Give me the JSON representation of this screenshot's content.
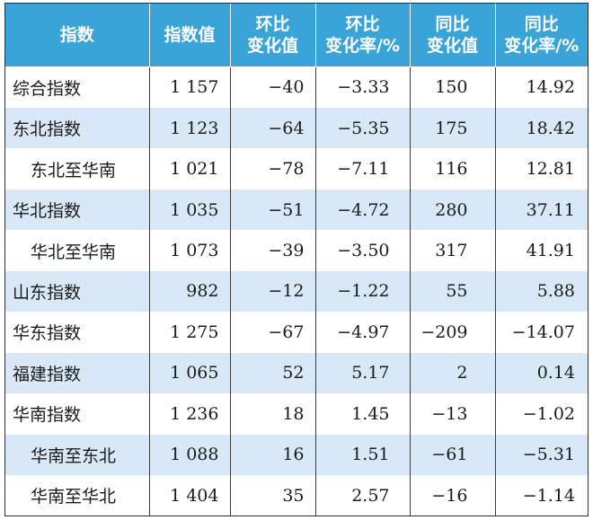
{
  "table": {
    "headers": [
      {
        "lines": [
          "指数"
        ]
      },
      {
        "lines": [
          "指数值"
        ]
      },
      {
        "lines": [
          "环比",
          "变化值"
        ]
      },
      {
        "lines": [
          "环比",
          "变化率/%"
        ]
      },
      {
        "lines": [
          "同比",
          "变化值"
        ]
      },
      {
        "lines": [
          "同比",
          "变化率/%"
        ]
      }
    ],
    "rows": [
      {
        "name": "综合指数",
        "sub": false,
        "value": "1 157",
        "mom_change": "−40",
        "mom_rate": "−3.33",
        "yoy_change": "150",
        "yoy_rate": "14.92"
      },
      {
        "name": "东北指数",
        "sub": false,
        "value": "1 123",
        "mom_change": "−64",
        "mom_rate": "−5.35",
        "yoy_change": "175",
        "yoy_rate": "18.42"
      },
      {
        "name": "东北至华南",
        "sub": true,
        "value": "1 021",
        "mom_change": "−78",
        "mom_rate": "−7.11",
        "yoy_change": "116",
        "yoy_rate": "12.81"
      },
      {
        "name": "华北指数",
        "sub": false,
        "value": "1 035",
        "mom_change": "−51",
        "mom_rate": "−4.72",
        "yoy_change": "280",
        "yoy_rate": "37.11"
      },
      {
        "name": "华北至华南",
        "sub": true,
        "value": "1 073",
        "mom_change": "−39",
        "mom_rate": "−3.50",
        "yoy_change": "317",
        "yoy_rate": "41.91"
      },
      {
        "name": "山东指数",
        "sub": false,
        "value": "982",
        "mom_change": "−12",
        "mom_rate": "−1.22",
        "yoy_change": "55",
        "yoy_rate": "5.88"
      },
      {
        "name": "华东指数",
        "sub": false,
        "value": "1 275",
        "mom_change": "−67",
        "mom_rate": "−4.97",
        "yoy_change": "−209",
        "yoy_rate": "−14.07"
      },
      {
        "name": "福建指数",
        "sub": false,
        "value": "1 065",
        "mom_change": "52",
        "mom_rate": "5.17",
        "yoy_change": "2",
        "yoy_rate": "0.14"
      },
      {
        "name": "华南指数",
        "sub": false,
        "value": "1 236",
        "mom_change": "18",
        "mom_rate": "1.45",
        "yoy_change": "−13",
        "yoy_rate": "−1.02"
      },
      {
        "name": "华南至东北",
        "sub": true,
        "value": "1 088",
        "mom_change": "16",
        "mom_rate": "1.51",
        "yoy_change": "−61",
        "yoy_rate": "−5.31"
      },
      {
        "name": "华南至华北",
        "sub": true,
        "value": "1 404",
        "mom_change": "35",
        "mom_rate": "2.57",
        "yoy_change": "−16",
        "yoy_rate": "−1.14"
      }
    ]
  },
  "colors": {
    "header_bg": "#3aa3d8",
    "header_text": "#ffffff",
    "shaded_row": "#d9e8f6",
    "plain_row": "#ffffff",
    "border": "#3a3a3a"
  }
}
